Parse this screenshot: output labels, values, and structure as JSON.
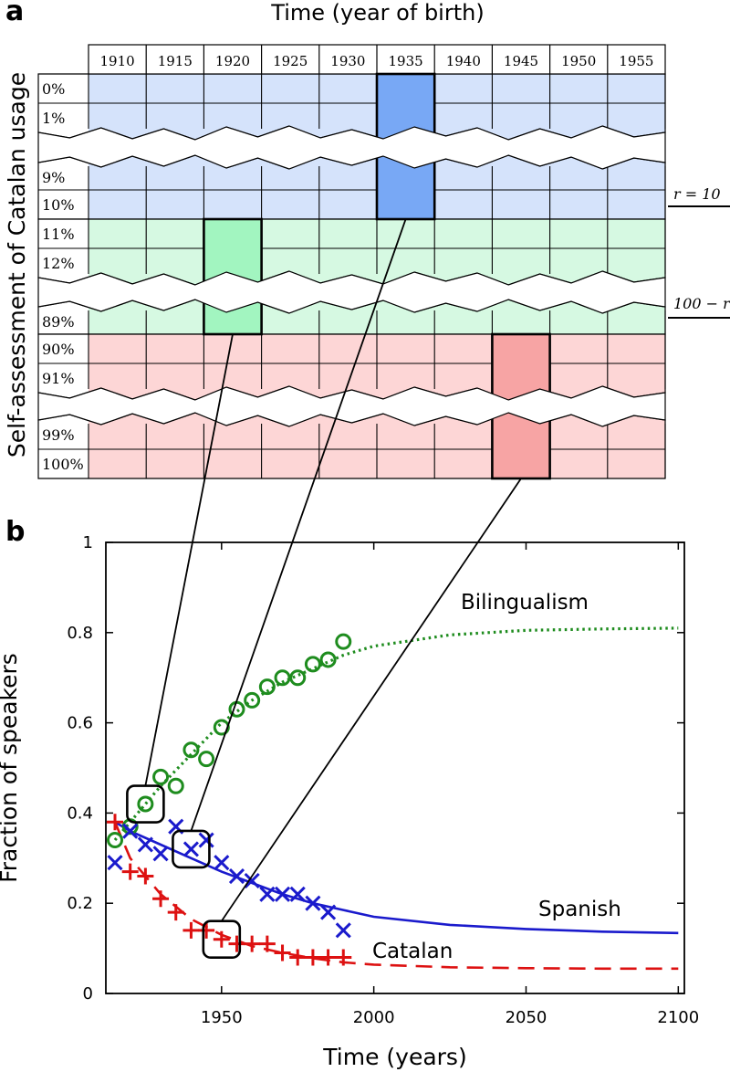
{
  "panel_a": {
    "label": "a",
    "title": "Time (year of birth)",
    "ylabel": "Self-assessment of Catalan usage",
    "years": [
      "1910",
      "1915",
      "1920",
      "1925",
      "1930",
      "1935",
      "1940",
      "1945",
      "1950",
      "1955"
    ],
    "row_labels": [
      "0%",
      "1%",
      "9%",
      "10%",
      "11%",
      "12%",
      "89%",
      "90%",
      "91%",
      "99%",
      "100%"
    ],
    "threshold_low": "r = 10",
    "threshold_high": "100 − r",
    "colors": {
      "blue": "#d5e3fb",
      "green": "#d6f9e2",
      "red": "#fdd6d6",
      "blue_hl": "#78a8f5",
      "green_hl": "#a2f5c0",
      "red_hl": "#f7a4a4"
    }
  },
  "panel_b": {
    "label": "b"
  },
  "chart_data": {
    "type": "scatter",
    "title": "",
    "xlabel": "Time (years)",
    "ylabel": "Fraction of speakers",
    "xlim": [
      1912,
      2102
    ],
    "ylim": [
      0,
      1
    ],
    "xticks": [
      1950,
      2000,
      2050,
      2100
    ],
    "yticks": [
      0,
      0.2,
      0.4,
      0.6,
      0.8,
      1
    ],
    "ytick_labels": [
      "0",
      "0.2",
      "0.4",
      "0.6",
      "0.8",
      "1"
    ],
    "series": [
      {
        "name": "Bilingualism",
        "color": "#1e8c1e",
        "marker": "circle",
        "x": [
          1915,
          1920,
          1925,
          1930,
          1935,
          1940,
          1945,
          1950,
          1955,
          1960,
          1965,
          1970,
          1975,
          1980,
          1985,
          1990
        ],
        "y": [
          0.34,
          0.37,
          0.42,
          0.48,
          0.46,
          0.54,
          0.52,
          0.59,
          0.63,
          0.65,
          0.68,
          0.7,
          0.7,
          0.73,
          0.74,
          0.78
        ],
        "fit_style": "dotted",
        "fit_x": [
          1915,
          1920,
          1925,
          1930,
          1940,
          1950,
          1960,
          1970,
          1980,
          1990,
          2000,
          2025,
          2050,
          2075,
          2100
        ],
        "fit_y": [
          0.34,
          0.38,
          0.42,
          0.46,
          0.53,
          0.6,
          0.65,
          0.69,
          0.72,
          0.75,
          0.77,
          0.795,
          0.805,
          0.808,
          0.81
        ]
      },
      {
        "name": "Spanish",
        "color": "#1a1acc",
        "marker": "x",
        "x": [
          1915,
          1920,
          1925,
          1930,
          1935,
          1940,
          1945,
          1950,
          1955,
          1960,
          1965,
          1970,
          1975,
          1980,
          1985,
          1990
        ],
        "y": [
          0.29,
          0.36,
          0.33,
          0.31,
          0.37,
          0.32,
          0.34,
          0.29,
          0.26,
          0.25,
          0.22,
          0.22,
          0.22,
          0.2,
          0.18,
          0.14
        ],
        "fit_style": "solid",
        "fit_x": [
          1915,
          1920,
          1930,
          1940,
          1950,
          1960,
          1970,
          1980,
          1990,
          2000,
          2025,
          2050,
          2075,
          2100
        ],
        "fit_y": [
          0.38,
          0.36,
          0.33,
          0.3,
          0.27,
          0.245,
          0.22,
          0.2,
          0.185,
          0.17,
          0.152,
          0.143,
          0.137,
          0.134
        ]
      },
      {
        "name": "Catalan",
        "color": "#dd1111",
        "marker": "plus",
        "x": [
          1915,
          1920,
          1925,
          1930,
          1935,
          1940,
          1945,
          1950,
          1955,
          1960,
          1965,
          1970,
          1975,
          1980,
          1985,
          1990
        ],
        "y": [
          0.38,
          0.27,
          0.26,
          0.21,
          0.18,
          0.14,
          0.14,
          0.12,
          0.11,
          0.11,
          0.11,
          0.09,
          0.08,
          0.08,
          0.08,
          0.08
        ],
        "fit_style": "dashed",
        "fit_x": [
          1915,
          1920,
          1930,
          1940,
          1950,
          1960,
          1970,
          1980,
          1990,
          2000,
          2025,
          2050,
          2075,
          2100
        ],
        "fit_y": [
          0.38,
          0.3,
          0.22,
          0.165,
          0.13,
          0.105,
          0.09,
          0.078,
          0.069,
          0.064,
          0.058,
          0.056,
          0.055,
          0.055
        ]
      }
    ],
    "highlight_points": [
      {
        "series": "Bilingualism",
        "x": 1925,
        "y": 0.42
      },
      {
        "series": "Spanish",
        "x": 1940,
        "y": 0.32
      },
      {
        "series": "Catalan",
        "x": 1950,
        "y": 0.12
      }
    ]
  }
}
